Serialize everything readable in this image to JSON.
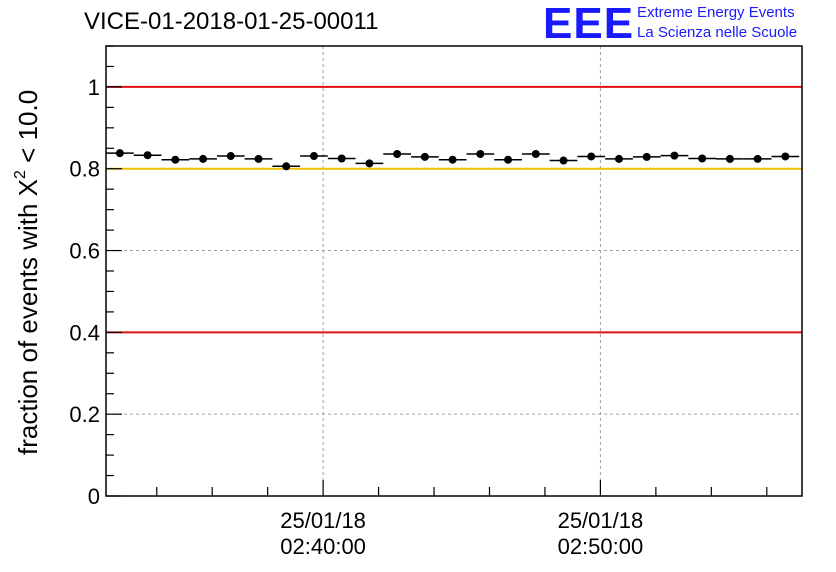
{
  "title": "VICE-01-2018-01-25-00011",
  "logo": {
    "mark": "EEE",
    "line1": "Extreme Energy Events",
    "line2": "La Scienza nelle Scuole",
    "color": "#1a1aff"
  },
  "chart_data": {
    "type": "scatter",
    "title": "VICE-01-2018-01-25-00011",
    "ylabel_prefix": "fraction of events with ",
    "ylabel_chi": "X",
    "ylabel_sup": "2",
    "ylabel_suffix": " < 10.0",
    "xlabel": "",
    "x_unit": "minutes after 02:32:10",
    "xlim": [
      0,
      25.1
    ],
    "ylim": [
      0,
      1.1
    ],
    "y_ticks": [
      0,
      0.2,
      0.4,
      0.6,
      0.8,
      1
    ],
    "y_tick_labels": [
      "0",
      "0.2",
      "0.4",
      "0.6",
      "0.8",
      "1"
    ],
    "x_ticks": [
      7.83,
      17.83
    ],
    "x_tick_labels": [
      {
        "date": "25/01/18",
        "time": "02:40:00"
      },
      {
        "date": "25/01/18",
        "time": "02:50:00"
      }
    ],
    "x_minor_step": 2,
    "x_minor_start": 1.83,
    "grid": true,
    "reference_lines": [
      {
        "y": 1.0,
        "color": "#e01010"
      },
      {
        "y": 0.8,
        "color": "#f0c000"
      },
      {
        "y": 0.4,
        "color": "#e01010"
      }
    ],
    "bin_width": 1.0,
    "x": [
      0.5,
      1.5,
      2.5,
      3.5,
      4.5,
      5.5,
      6.5,
      7.5,
      8.5,
      9.5,
      10.5,
      11.5,
      12.5,
      13.5,
      14.5,
      15.5,
      16.5,
      17.5,
      18.5,
      19.5,
      20.5,
      21.5,
      22.5,
      23.5,
      24.5
    ],
    "values": [
      0.838,
      0.833,
      0.822,
      0.824,
      0.831,
      0.824,
      0.806,
      0.831,
      0.825,
      0.813,
      0.836,
      0.829,
      0.822,
      0.836,
      0.822,
      0.836,
      0.82,
      0.83,
      0.824,
      0.829,
      0.832,
      0.825,
      0.824,
      0.824,
      0.83
    ],
    "errors": [
      0.005,
      0.005,
      0.005,
      0.005,
      0.005,
      0.005,
      0.006,
      0.005,
      0.005,
      0.005,
      0.005,
      0.005,
      0.005,
      0.005,
      0.005,
      0.005,
      0.005,
      0.005,
      0.005,
      0.005,
      0.005,
      0.005,
      0.005,
      0.005,
      0.005
    ]
  }
}
